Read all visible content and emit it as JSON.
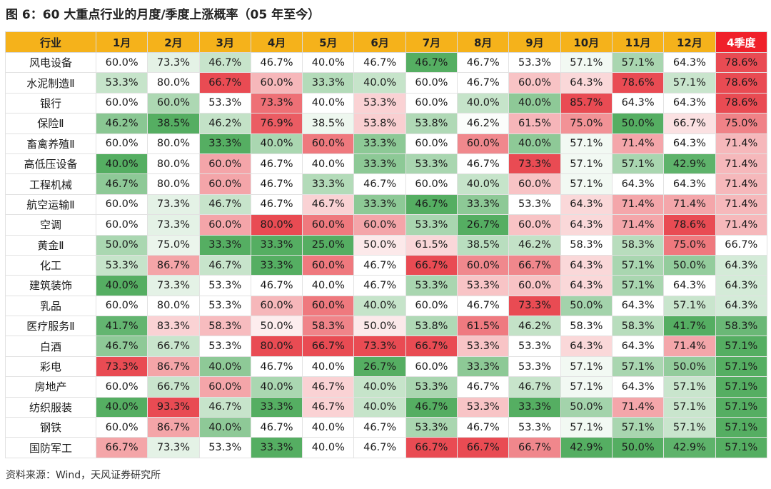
{
  "title": "图 6：60 大重点行业的月度/季度上涨概率（05 年至今）",
  "source": "资料来源：Wind，天风证券研究所",
  "chart_data": {
    "type": "table",
    "columns": [
      "行业",
      "1月",
      "2月",
      "3月",
      "4月",
      "5月",
      "6月",
      "7月",
      "8月",
      "9月",
      "10月",
      "11月",
      "12月",
      "4季度"
    ],
    "rows": [
      [
        "风电设备",
        "60.0%",
        "73.3%",
        "46.7%",
        "46.7%",
        "40.0%",
        "46.7%",
        "46.7%",
        "46.7%",
        "53.3%",
        "57.1%",
        "57.1%",
        "64.3%",
        "78.6%"
      ],
      [
        "水泥制造Ⅱ",
        "53.3%",
        "80.0%",
        "66.7%",
        "60.0%",
        "33.3%",
        "40.0%",
        "60.0%",
        "46.7%",
        "60.0%",
        "64.3%",
        "78.6%",
        "57.1%",
        "78.6%"
      ],
      [
        "银行",
        "60.0%",
        "60.0%",
        "53.3%",
        "73.3%",
        "40.0%",
        "53.3%",
        "60.0%",
        "40.0%",
        "40.0%",
        "85.7%",
        "64.3%",
        "64.3%",
        "78.6%"
      ],
      [
        "保险Ⅱ",
        "46.2%",
        "38.5%",
        "46.2%",
        "76.9%",
        "38.5%",
        "53.8%",
        "53.8%",
        "46.2%",
        "61.5%",
        "75.0%",
        "50.0%",
        "66.7%",
        "75.0%"
      ],
      [
        "畜禽养殖Ⅱ",
        "60.0%",
        "80.0%",
        "33.3%",
        "40.0%",
        "60.0%",
        "33.3%",
        "60.0%",
        "60.0%",
        "40.0%",
        "57.1%",
        "71.4%",
        "64.3%",
        "71.4%"
      ],
      [
        "高低压设备",
        "40.0%",
        "80.0%",
        "60.0%",
        "46.7%",
        "40.0%",
        "33.3%",
        "53.3%",
        "46.7%",
        "73.3%",
        "57.1%",
        "57.1%",
        "42.9%",
        "71.4%"
      ],
      [
        "工程机械",
        "46.7%",
        "80.0%",
        "60.0%",
        "46.7%",
        "33.3%",
        "46.7%",
        "60.0%",
        "40.0%",
        "60.0%",
        "57.1%",
        "64.3%",
        "64.3%",
        "71.4%"
      ],
      [
        "航空运输Ⅱ",
        "60.0%",
        "73.3%",
        "46.7%",
        "46.7%",
        "46.7%",
        "33.3%",
        "46.7%",
        "33.3%",
        "53.3%",
        "64.3%",
        "71.4%",
        "71.4%",
        "71.4%"
      ],
      [
        "空调",
        "60.0%",
        "73.3%",
        "60.0%",
        "80.0%",
        "60.0%",
        "60.0%",
        "53.3%",
        "26.7%",
        "60.0%",
        "64.3%",
        "71.4%",
        "78.6%",
        "71.4%"
      ],
      [
        "黄金Ⅱ",
        "50.0%",
        "75.0%",
        "33.3%",
        "33.3%",
        "25.0%",
        "50.0%",
        "61.5%",
        "38.5%",
        "46.2%",
        "58.3%",
        "58.3%",
        "75.0%",
        "66.7%"
      ],
      [
        "化工",
        "53.3%",
        "86.7%",
        "46.7%",
        "33.3%",
        "60.0%",
        "46.7%",
        "66.7%",
        "60.0%",
        "66.7%",
        "64.3%",
        "57.1%",
        "50.0%",
        "64.3%"
      ],
      [
        "建筑装饰",
        "40.0%",
        "73.3%",
        "53.3%",
        "46.7%",
        "40.0%",
        "46.7%",
        "53.3%",
        "53.3%",
        "60.0%",
        "64.3%",
        "57.1%",
        "64.3%",
        "64.3%"
      ],
      [
        "乳品",
        "60.0%",
        "80.0%",
        "53.3%",
        "60.0%",
        "60.0%",
        "40.0%",
        "60.0%",
        "46.7%",
        "73.3%",
        "50.0%",
        "64.3%",
        "57.1%",
        "64.3%"
      ],
      [
        "医疗服务Ⅱ",
        "41.7%",
        "83.3%",
        "58.3%",
        "50.0%",
        "58.3%",
        "50.0%",
        "53.8%",
        "61.5%",
        "46.2%",
        "58.3%",
        "58.3%",
        "41.7%",
        "58.3%"
      ],
      [
        "白酒",
        "46.7%",
        "66.7%",
        "53.3%",
        "80.0%",
        "66.7%",
        "73.3%",
        "66.7%",
        "53.3%",
        "53.3%",
        "64.3%",
        "64.3%",
        "71.4%",
        "57.1%"
      ],
      [
        "彩电",
        "73.3%",
        "86.7%",
        "40.0%",
        "46.7%",
        "40.0%",
        "26.7%",
        "60.0%",
        "33.3%",
        "53.3%",
        "57.1%",
        "57.1%",
        "50.0%",
        "57.1%"
      ],
      [
        "房地产",
        "60.0%",
        "66.7%",
        "60.0%",
        "40.0%",
        "46.7%",
        "40.0%",
        "53.3%",
        "46.7%",
        "46.7%",
        "57.1%",
        "64.3%",
        "57.1%",
        "57.1%"
      ],
      [
        "纺织服装",
        "40.0%",
        "93.3%",
        "46.7%",
        "33.3%",
        "46.7%",
        "40.0%",
        "46.7%",
        "53.3%",
        "33.3%",
        "50.0%",
        "71.4%",
        "57.1%",
        "57.1%"
      ],
      [
        "钢铁",
        "60.0%",
        "86.7%",
        "40.0%",
        "46.7%",
        "40.0%",
        "46.7%",
        "53.3%",
        "46.7%",
        "53.3%",
        "57.1%",
        "57.1%",
        "57.1%",
        "57.1%"
      ],
      [
        "国防军工",
        "66.7%",
        "73.3%",
        "53.3%",
        "33.3%",
        "40.0%",
        "46.7%",
        "66.7%",
        "66.7%",
        "66.7%",
        "42.9%",
        "50.0%",
        "42.9%",
        "57.1%"
      ]
    ]
  },
  "colors": {
    "header": "#f5b21b",
    "header_highlight": "#f0202a",
    "high": "#e8424a",
    "low": "#4caa5a"
  }
}
